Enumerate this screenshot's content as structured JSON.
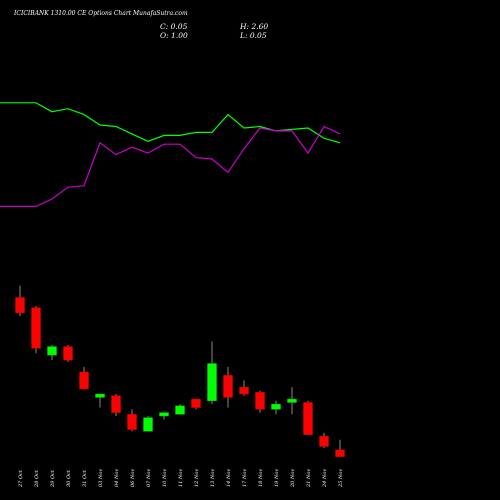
{
  "header": {
    "title": "ICICIBANK 1310.00 CE Options Chart MunafaSutra.com",
    "close_text": "C: 0.05",
    "open_text": "O: 1.00",
    "high_text": "H: 2.60",
    "low_text": "L: 0.05"
  },
  "chart_data": {
    "type": "candlestick",
    "title": "ICICIBANK 1310.00 CE Options Chart MunafaSutra.com",
    "xlabel": "",
    "ylabel": "",
    "grid": false,
    "colors": {
      "up": "#00ff00",
      "down": "#ff0000",
      "line_green": "#00ff00",
      "line_purple": "#cc00cc",
      "background": "#000000"
    },
    "categories": [
      "27 Oct",
      "28 Oct",
      "29 Oct",
      "30 Oct",
      "31 Oct",
      "03 Nov",
      "04 Nov",
      "06 Nov",
      "07 Nov",
      "10 Nov",
      "11 Nov",
      "12 Nov",
      "13 Nov",
      "14 Nov",
      "17 Nov",
      "18 Nov",
      "19 Nov",
      "20 Nov",
      "21 Nov",
      "24 Nov",
      "25 Nov"
    ],
    "candles": [
      {
        "date": "27 Oct",
        "open": 41.5,
        "high": 45.0,
        "low": 36.0,
        "close": 37.0
      },
      {
        "date": "28 Oct",
        "open": 38.5,
        "high": 39.0,
        "low": 25.0,
        "close": 26.5
      },
      {
        "date": "29 Oct",
        "open": 24.5,
        "high": 27.5,
        "low": 23.0,
        "close": 27.0
      },
      {
        "date": "30 Oct",
        "open": 27.0,
        "high": 27.5,
        "low": 22.5,
        "close": 23.0
      },
      {
        "date": "31 Oct",
        "open": 19.5,
        "high": 21.0,
        "low": 14.5,
        "close": 14.5
      },
      {
        "date": "03 Nov",
        "open": 12.0,
        "high": 13.0,
        "low": 9.0,
        "close": 13.0
      },
      {
        "date": "04 Nov",
        "open": 12.5,
        "high": 13.0,
        "low": 6.5,
        "close": 7.5
      },
      {
        "date": "06 Nov",
        "open": 7.0,
        "high": 8.5,
        "low": 2.0,
        "close": 2.5
      },
      {
        "date": "07 Nov",
        "open": 2.0,
        "high": 6.5,
        "low": 2.0,
        "close": 6.0
      },
      {
        "date": "10 Nov",
        "open": 6.5,
        "high": 7.5,
        "low": 5.5,
        "close": 7.5
      },
      {
        "date": "11 Nov",
        "open": 7.0,
        "high": 10.0,
        "low": 7.0,
        "close": 9.5
      },
      {
        "date": "12 Nov",
        "open": 11.5,
        "high": 11.5,
        "low": 8.5,
        "close": 9.0
      },
      {
        "date": "13 Nov",
        "open": 11.0,
        "high": 28.5,
        "low": 10.0,
        "close": 22.0
      },
      {
        "date": "14 Nov",
        "open": 18.5,
        "high": 21.0,
        "low": 9.0,
        "close": 12.0
      },
      {
        "date": "17 Nov",
        "open": 15.0,
        "high": 17.0,
        "low": 12.5,
        "close": 13.0
      },
      {
        "date": "18 Nov",
        "open": 13.5,
        "high": 14.0,
        "low": 7.5,
        "close": 8.5
      },
      {
        "date": "19 Nov",
        "open": 8.5,
        "high": 11.0,
        "low": 7.0,
        "close": 10.0
      },
      {
        "date": "20 Nov",
        "open": 10.5,
        "high": 15.0,
        "low": 7.0,
        "close": 11.5
      },
      {
        "date": "21 Nov",
        "open": 10.5,
        "high": 11.0,
        "low": 1.0,
        "close": 1.0
      },
      {
        "date": "24 Nov",
        "open": 0.5,
        "high": 1.5,
        "low": -3.0,
        "close": -2.5
      },
      {
        "date": "25 Nov",
        "open": -3.5,
        "high": -0.5,
        "low": -5.5,
        "close": -5.5
      }
    ],
    "candle_ylim": [
      -6.5,
      52
    ],
    "indicator_lines": [
      {
        "color": "#00ff00",
        "values": [
          90,
          90,
          84,
          86,
          82,
          75,
          74,
          69,
          64,
          68,
          68,
          70,
          70,
          82,
          73,
          74,
          71,
          72,
          73,
          66,
          63
        ],
        "note": "relative level 0-100 (high = top)"
      },
      {
        "color": "#cc00cc",
        "values": [
          20,
          20,
          25,
          33,
          34,
          63,
          55,
          60,
          56,
          62,
          62,
          53,
          52,
          43,
          59,
          73,
          71,
          71,
          56,
          74,
          69
        ],
        "note": "relative level 0-100 (high = top)"
      }
    ]
  }
}
